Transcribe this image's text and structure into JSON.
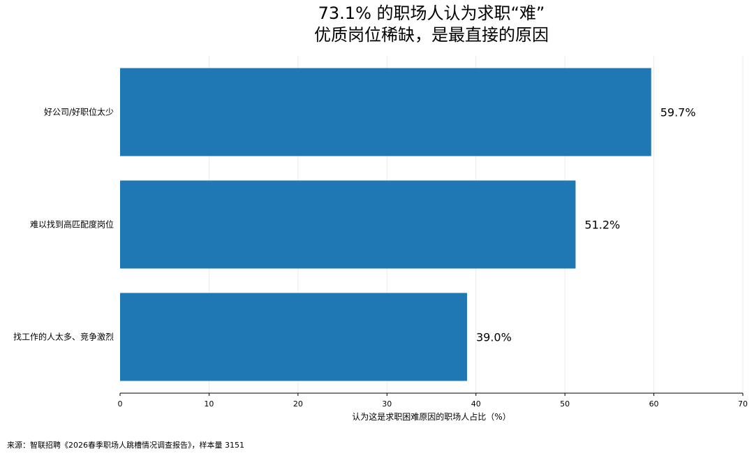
{
  "chart_data": {
    "type": "bar",
    "orientation": "horizontal",
    "title_lines": [
      "73.1% 的职场人认为求职“难”",
      "优质岗位稀缺，是最直接的原因"
    ],
    "categories": [
      "好公司/好职位太少",
      "难以找到高匹配度岗位",
      "找工作的人太多、竞争激烈"
    ],
    "values": [
      59.7,
      51.2,
      39.0
    ],
    "value_labels": [
      "59.7%",
      "51.2%",
      "39.0%"
    ],
    "xlabel": "认为这是求职困难原因的职场人占比（%）",
    "ylabel": "",
    "xlim": [
      0,
      70
    ],
    "xticks": [
      0,
      10,
      20,
      30,
      40,
      50,
      60,
      70
    ],
    "grid": "vertical",
    "bar_color": "#1f77b4"
  },
  "source": "来源：智联招聘《2026春季职场人跳槽情况调查报告》，样本量 3151"
}
